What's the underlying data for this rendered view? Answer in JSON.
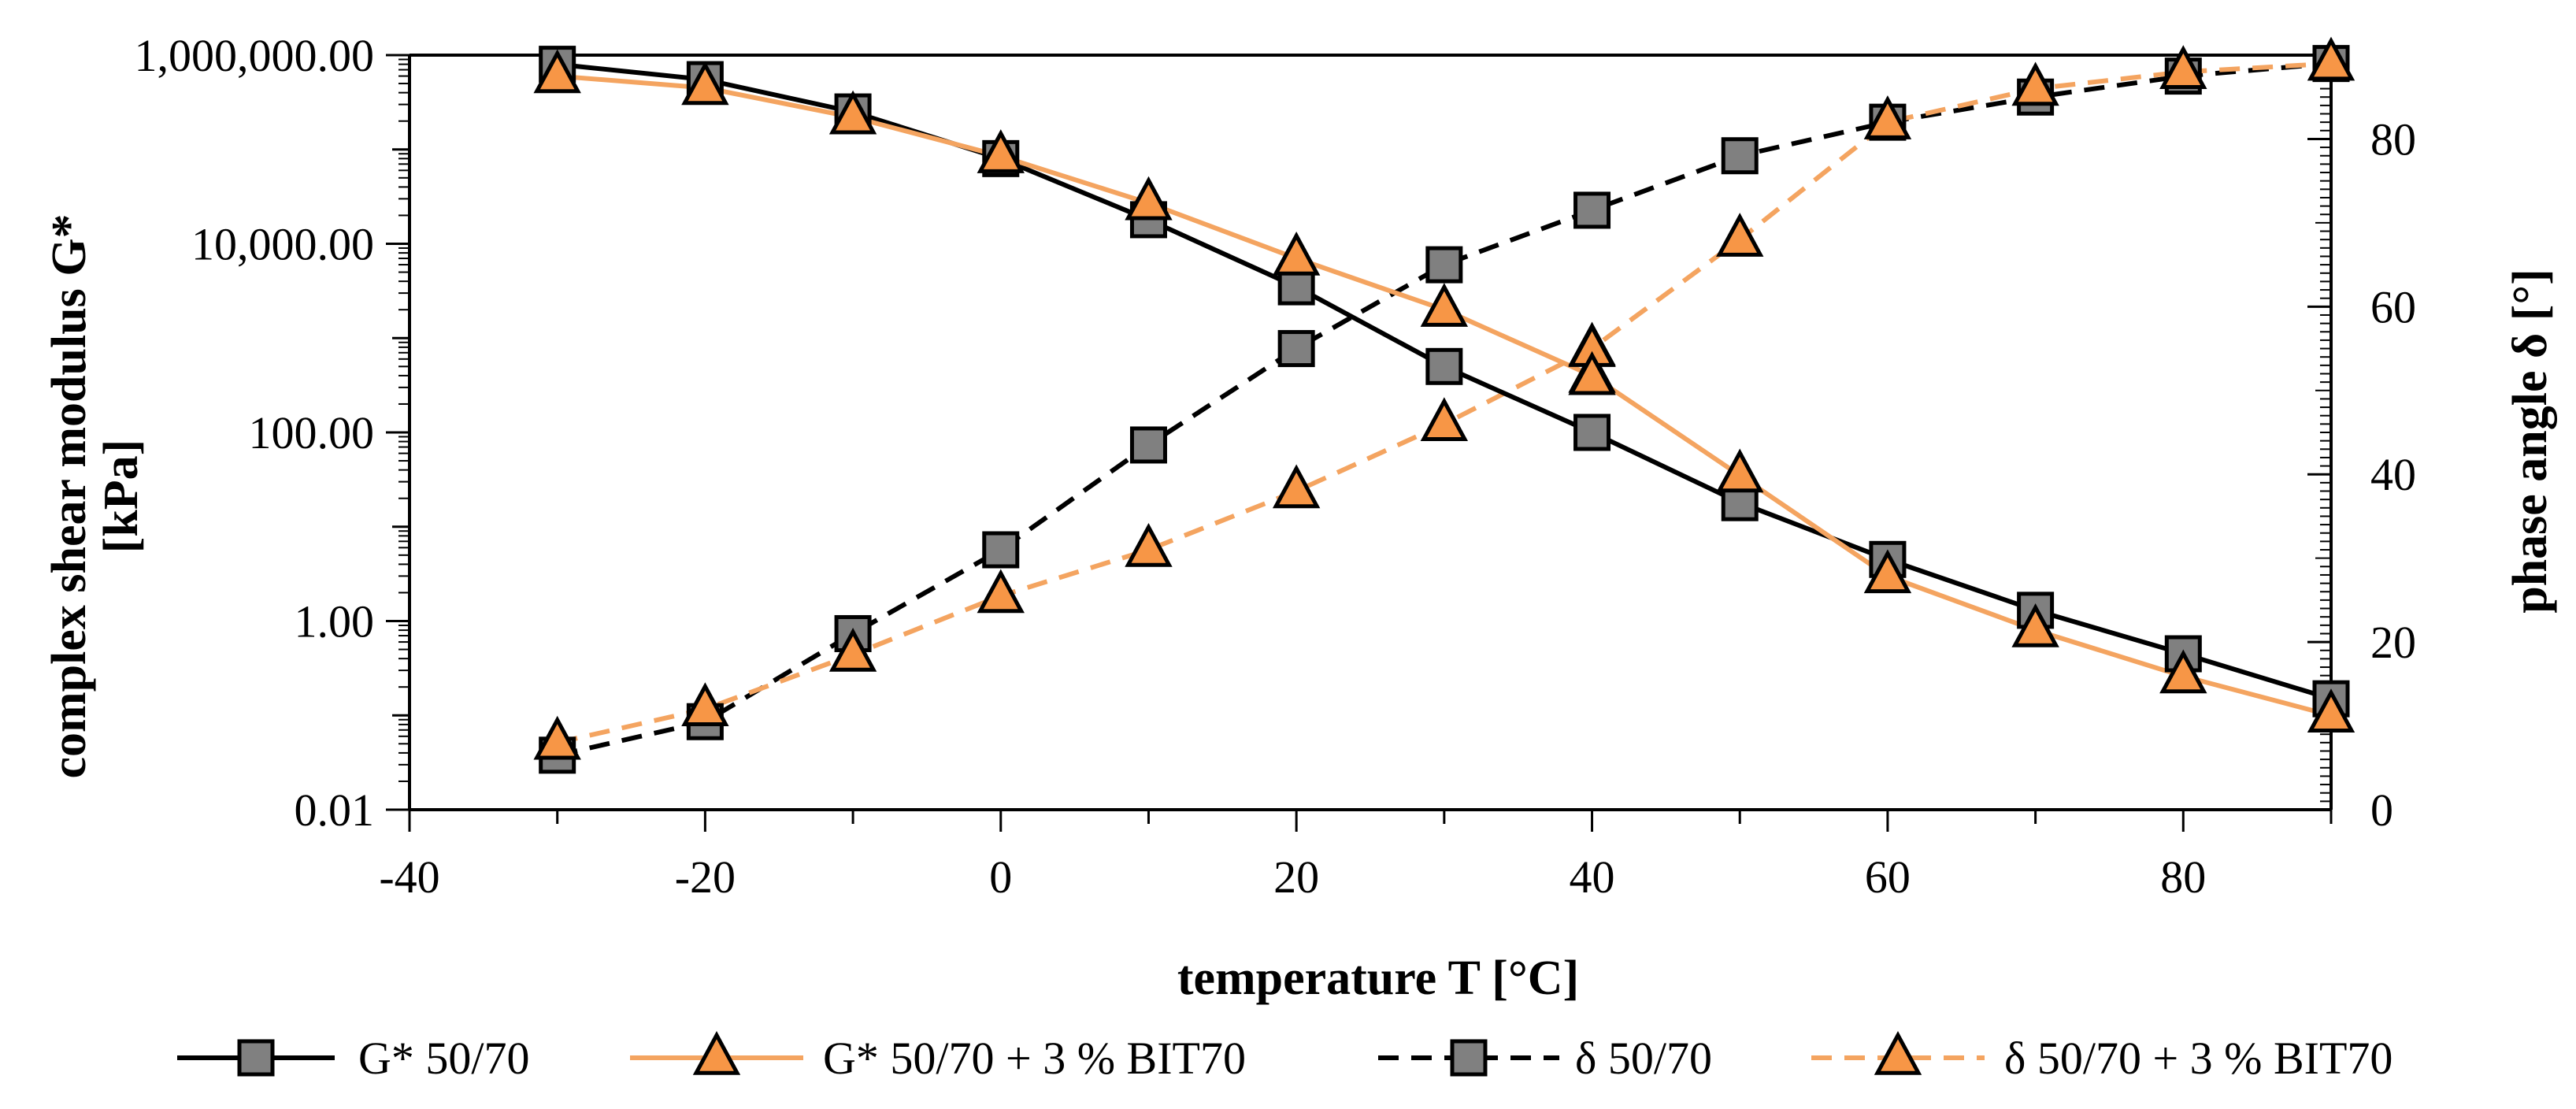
{
  "chart_data": {
    "type": "line",
    "xlabel": "temperature T [°C]",
    "ylabel_left_line1": "complex shear modulus G*",
    "ylabel_left_line2": "[kPa]",
    "ylabel_right": "phase angle δ [°]",
    "x_range": [
      -40,
      90
    ],
    "x_ticks": [
      -40,
      -20,
      0,
      20,
      40,
      60,
      80
    ],
    "x_tick_labels": [
      "-40",
      "-20",
      "0",
      "20",
      "40",
      "60",
      "80"
    ],
    "y_left_scale": "log",
    "y_left_range": [
      0.01,
      1000000
    ],
    "y_left_ticks": [
      0.01,
      1,
      100,
      10000,
      1000000
    ],
    "y_left_tick_labels": [
      "0.01",
      "1.00",
      "100.00",
      "10,000.00",
      "1,000,000.00"
    ],
    "y_right_range": [
      0,
      90
    ],
    "y_right_ticks": [
      0,
      20,
      40,
      60,
      80
    ],
    "y_right_tick_labels": [
      "0",
      "20",
      "40",
      "60",
      "80"
    ],
    "x": [
      -30,
      -20,
      -10,
      0,
      10,
      20,
      30,
      40,
      50,
      60,
      70,
      80,
      90
    ],
    "series": [
      {
        "name": "G* 50/70",
        "axis": "left",
        "marker": "square",
        "line_color": "#000000",
        "marker_fill": "#808080",
        "dash": "solid",
        "values": [
          800000,
          550000,
          250000,
          80000,
          18000,
          3500,
          500,
          100,
          18,
          4.5,
          1.3,
          0.45,
          0.15
        ]
      },
      {
        "name": "G* 50/70 + 3 % BIT70",
        "axis": "left",
        "marker": "triangle",
        "line_color": "#F4A460",
        "marker_fill": "#F79646",
        "dash": "solid",
        "values": [
          600000,
          450000,
          220000,
          85000,
          27000,
          7000,
          2000,
          400,
          35,
          3,
          0.8,
          0.26,
          0.1
        ]
      },
      {
        "name": "δ 50/70",
        "axis": "right",
        "marker": "square",
        "line_color": "#000000",
        "marker_fill": "#808080",
        "dash": "dashed",
        "values": [
          6.5,
          10.5,
          21,
          31,
          43.5,
          55,
          65,
          71.5,
          78,
          82,
          85,
          87.5,
          89
        ]
      },
      {
        "name": "δ 50/70 + 3 % BIT70",
        "axis": "right",
        "marker": "triangle",
        "line_color": "#F4A460",
        "marker_fill": "#F79646",
        "dash": "dashed",
        "values": [
          8,
          12,
          18.5,
          25.5,
          31,
          38,
          46,
          55,
          68,
          82,
          86,
          88,
          89
        ]
      }
    ],
    "extra_points": [
      {
        "series_index": 1,
        "x": 40,
        "value": 750
      },
      {
        "series_index": 3,
        "x": 40,
        "value": 51.5
      }
    ],
    "legend_position": "bottom"
  }
}
